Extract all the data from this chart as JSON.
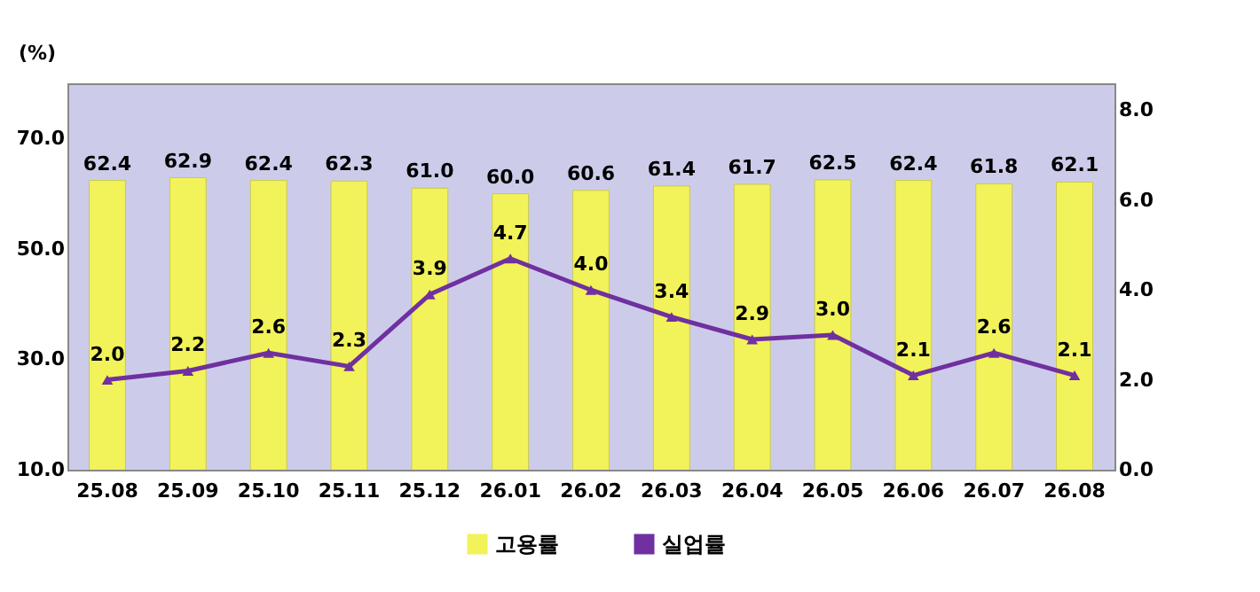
{
  "chart_data": {
    "type": "bar",
    "ylabel": "(%)",
    "categories": [
      "25.08",
      "25.09",
      "25.10",
      "25.11",
      "25.12",
      "26.01",
      "26.02",
      "26.03",
      "26.04",
      "26.05",
      "26.06",
      "26.07",
      "26.08"
    ],
    "series": [
      {
        "name": "고용률",
        "color": "#f2f25a",
        "values": [
          62.4,
          62.9,
          62.4,
          62.3,
          61.0,
          60.0,
          60.6,
          61.4,
          61.7,
          62.5,
          62.4,
          61.8,
          62.1
        ],
        "value_labels": [
          "62.4",
          "62.9",
          "62.4",
          "62.3",
          "61.0",
          "60.0",
          "60.6",
          "61.4",
          "61.7",
          "62.5",
          "62.4",
          "61.8",
          "62.1"
        ]
      },
      {
        "name": "실업률",
        "type": "line",
        "axis": "y2",
        "color": "#7030a0",
        "values": [
          2.0,
          2.2,
          2.6,
          2.3,
          3.9,
          4.7,
          4.0,
          3.4,
          2.9,
          3.0,
          2.1,
          2.6,
          2.1
        ],
        "value_labels": [
          "2.0",
          "2.2",
          "2.6",
          "2.3",
          "3.9",
          "4.7",
          "4.0",
          "3.4",
          "2.9",
          "3.0",
          "2.1",
          "2.6",
          "2.1"
        ]
      }
    ],
    "ylim": [
      10,
      80
    ],
    "yticks": [
      {
        "value": 10,
        "label": "10.0"
      },
      {
        "value": 30,
        "label": "30.0"
      },
      {
        "value": 50,
        "label": "50.0"
      },
      {
        "value": 70,
        "label": "70.0"
      }
    ],
    "y2lim": [
      0,
      8.6
    ],
    "y2ticks": [
      {
        "value": 0,
        "label": "0.0"
      },
      {
        "value": 2,
        "label": "2.0"
      },
      {
        "value": 4,
        "label": "4.0"
      },
      {
        "value": 6,
        "label": "6.0"
      },
      {
        "value": 8,
        "label": "8.0"
      }
    ],
    "legend": "bottom",
    "marker": "triangle",
    "grid": false
  }
}
